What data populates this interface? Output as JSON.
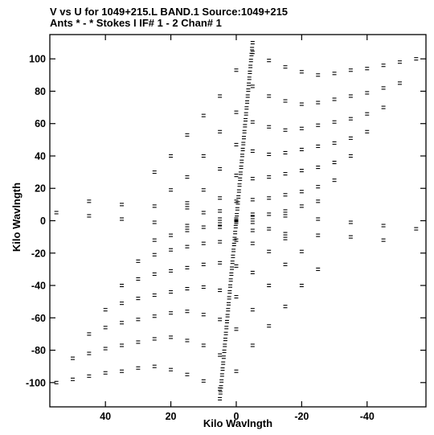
{
  "chart_data": {
    "type": "scatter",
    "title": "V vs U for 1049+215.L BAND.1   Source:1049+215",
    "subtitle": "Ants * - *     Stokes I   IF# 1 - 2  Chan# 1",
    "xlabel": "Kilo Wavlngth",
    "ylabel": "Kilo Wavlngth",
    "xlim": [
      57,
      -58
    ],
    "ylim": [
      -115,
      115
    ],
    "x_ticks": [
      40,
      20,
      0,
      -20,
      -40
    ],
    "y_ticks": [
      100,
      80,
      60,
      40,
      20,
      0,
      -20,
      -40,
      -60,
      -80,
      -100
    ],
    "grid": false,
    "symbol": "paired short dashes (conjugate-symmetric uv samples)",
    "uv_tracks": [
      {
        "name": "track-1",
        "points": [
          [
            -55,
            100
          ],
          [
            -50,
            98
          ],
          [
            -45,
            96
          ],
          [
            -40,
            94
          ],
          [
            -35,
            93
          ],
          [
            -30,
            91
          ],
          [
            -25,
            90
          ],
          [
            -20,
            92
          ],
          [
            -15,
            95
          ],
          [
            -10,
            99
          ],
          [
            -5,
            104
          ]
        ]
      },
      {
        "name": "track-2",
        "points": [
          [
            -50,
            85
          ],
          [
            -45,
            82
          ],
          [
            -40,
            79
          ],
          [
            -35,
            77
          ],
          [
            -30,
            75
          ],
          [
            -25,
            73
          ],
          [
            -20,
            72
          ],
          [
            -15,
            74
          ],
          [
            -10,
            77
          ],
          [
            -5,
            83
          ],
          [
            0,
            93
          ]
        ]
      },
      {
        "name": "track-3",
        "points": [
          [
            -45,
            70
          ],
          [
            -40,
            66
          ],
          [
            -35,
            63
          ],
          [
            -30,
            61
          ],
          [
            -25,
            59
          ],
          [
            -20,
            57
          ],
          [
            -15,
            56
          ],
          [
            -10,
            58
          ],
          [
            -5,
            61
          ],
          [
            0,
            67
          ],
          [
            5,
            77
          ]
        ]
      },
      {
        "name": "track-4",
        "points": [
          [
            -40,
            55
          ],
          [
            -35,
            51
          ],
          [
            -30,
            48
          ],
          [
            -25,
            46
          ],
          [
            -20,
            44
          ],
          [
            -15,
            42
          ],
          [
            -10,
            41
          ],
          [
            -5,
            43
          ],
          [
            0,
            47
          ],
          [
            5,
            55
          ],
          [
            10,
            65
          ]
        ]
      },
      {
        "name": "track-5",
        "points": [
          [
            -35,
            40
          ],
          [
            -30,
            36
          ],
          [
            -25,
            33
          ],
          [
            -20,
            31
          ],
          [
            -15,
            29
          ],
          [
            -10,
            27
          ],
          [
            -5,
            26
          ],
          [
            0,
            28
          ],
          [
            5,
            32
          ],
          [
            10,
            40
          ],
          [
            15,
            53
          ]
        ]
      },
      {
        "name": "track-6",
        "points": [
          [
            -30,
            25
          ],
          [
            -25,
            21
          ],
          [
            -20,
            18
          ],
          [
            -15,
            16
          ],
          [
            -10,
            14
          ],
          [
            -5,
            13
          ],
          [
            0,
            12
          ],
          [
            5,
            14
          ],
          [
            10,
            19
          ],
          [
            15,
            27
          ],
          [
            20,
            40
          ]
        ]
      },
      {
        "name": "track-7",
        "points": [
          [
            -25,
            12
          ],
          [
            -20,
            9
          ],
          [
            -15,
            6
          ],
          [
            -10,
            4
          ],
          [
            -5,
            2
          ],
          [
            0,
            1
          ],
          [
            5,
            1
          ],
          [
            10,
            5
          ],
          [
            15,
            11
          ],
          [
            20,
            19
          ],
          [
            25,
            30
          ]
        ]
      },
      {
        "name": "track-8",
        "points": [
          [
            -55,
            -5
          ],
          [
            -45,
            -3
          ],
          [
            -35,
            -1
          ],
          [
            -25,
            1
          ],
          [
            -15,
            3
          ],
          [
            -5,
            4
          ],
          [
            5,
            6
          ],
          [
            15,
            8
          ],
          [
            25,
            9
          ],
          [
            35,
            10
          ],
          [
            45,
            12
          ]
        ]
      }
    ],
    "long_baseline_line": {
      "x": [
        -5,
        5
      ],
      "y": [
        110,
        -110
      ]
    }
  }
}
